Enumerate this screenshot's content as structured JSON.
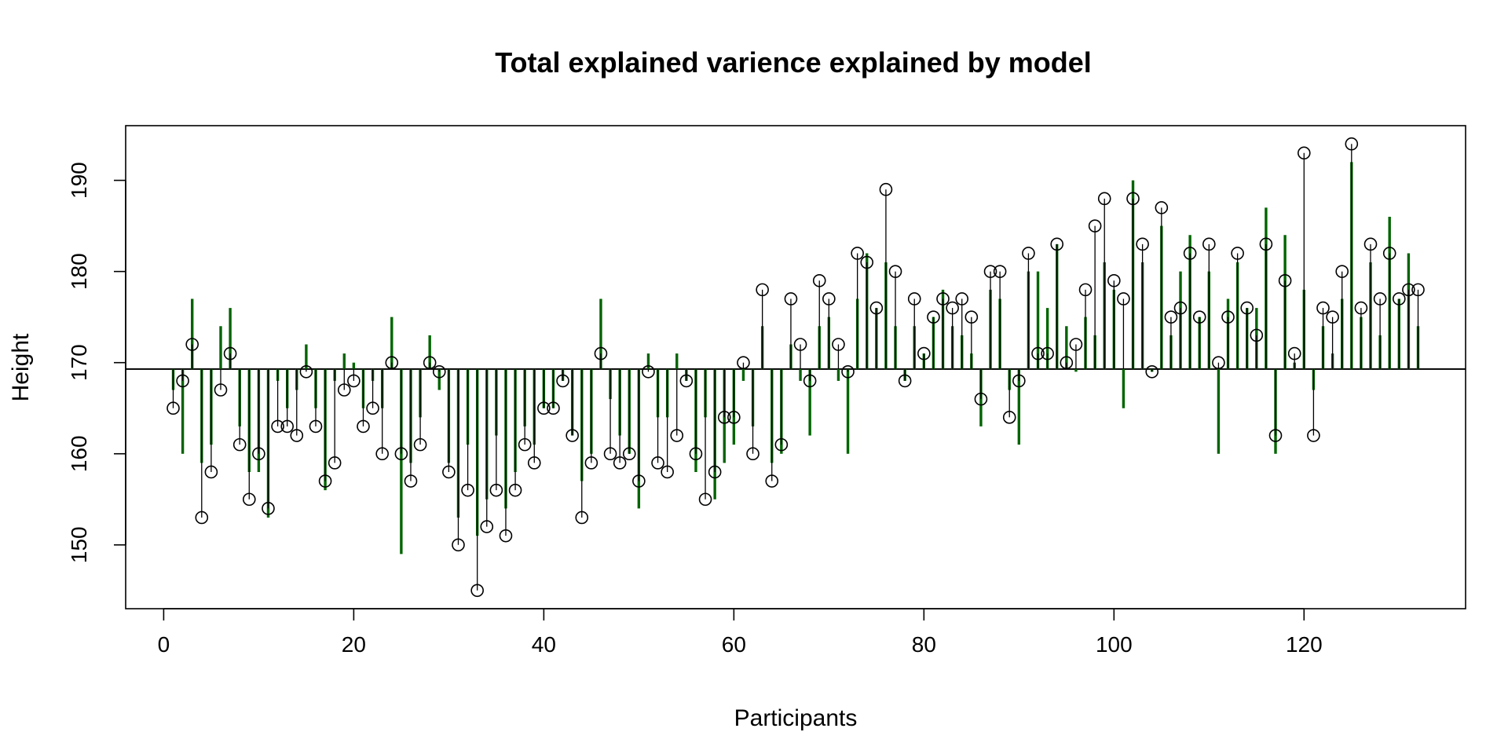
{
  "chart_data": {
    "type": "scatter",
    "title": "Total explained varience explained by model",
    "xlabel": "Participants",
    "ylabel": "Height",
    "xlim": [
      -4,
      137
    ],
    "ylim": [
      143,
      196
    ],
    "xticks": [
      0,
      20,
      40,
      60,
      80,
      100,
      120
    ],
    "yticks": [
      150,
      160,
      170,
      180,
      190
    ],
    "mean_line": 169.3,
    "grid": false,
    "legend": "none",
    "colors": {
      "fitted_segment": "#006400",
      "observed_segment": "#000000",
      "points": "#000000"
    },
    "x": [
      1,
      2,
      3,
      4,
      5,
      6,
      7,
      8,
      9,
      10,
      11,
      12,
      13,
      14,
      15,
      16,
      17,
      18,
      19,
      20,
      21,
      22,
      23,
      24,
      25,
      26,
      27,
      28,
      29,
      30,
      31,
      32,
      33,
      34,
      35,
      36,
      37,
      38,
      39,
      40,
      41,
      42,
      43,
      44,
      45,
      46,
      47,
      48,
      49,
      50,
      51,
      52,
      53,
      54,
      55,
      56,
      57,
      58,
      59,
      60,
      61,
      62,
      63,
      64,
      65,
      66,
      67,
      68,
      69,
      70,
      71,
      72,
      73,
      74,
      75,
      76,
      77,
      78,
      79,
      80,
      81,
      82,
      83,
      84,
      85,
      86,
      87,
      88,
      89,
      90,
      91,
      92,
      93,
      94,
      95,
      96,
      97,
      98,
      99,
      100,
      101,
      102,
      103,
      104,
      105,
      106,
      107,
      108,
      109,
      110,
      111,
      112,
      113,
      114,
      115,
      116,
      117,
      118,
      119,
      120,
      121,
      122,
      123,
      124,
      125,
      126,
      127,
      128,
      129,
      130,
      131,
      132
    ],
    "observed": [
      165,
      168,
      172,
      153,
      158,
      167,
      171,
      161,
      155,
      160,
      154,
      163,
      163,
      162,
      169,
      163,
      157,
      159,
      167,
      168,
      163,
      165,
      160,
      170,
      160,
      157,
      161,
      170,
      169,
      158,
      150,
      156,
      145,
      152,
      156,
      151,
      156,
      161,
      159,
      165,
      165,
      168,
      162,
      153,
      159,
      171,
      160,
      159,
      160,
      157,
      169,
      159,
      158,
      162,
      168,
      160,
      155,
      158,
      164,
      164,
      170,
      160,
      178,
      157,
      161,
      177,
      172,
      168,
      179,
      177,
      172,
      169,
      182,
      181,
      176,
      189,
      180,
      168,
      177,
      171,
      175,
      177,
      176,
      177,
      175,
      166,
      180,
      180,
      164,
      168,
      182,
      171,
      171,
      183,
      170,
      172,
      178,
      185,
      188,
      179,
      177,
      188,
      183,
      169,
      187,
      175,
      176,
      182,
      175,
      183,
      170,
      175,
      182,
      176,
      173,
      183,
      162,
      179,
      171,
      193,
      162,
      176,
      175,
      180,
      194,
      176,
      183,
      177,
      182,
      177,
      178,
      178
    ],
    "fitted": [
      167,
      160,
      177,
      159,
      161,
      174,
      176,
      163,
      158,
      158,
      153,
      168,
      165,
      167,
      172,
      165,
      156,
      168,
      171,
      170,
      165,
      168,
      165,
      175,
      149,
      159,
      164,
      173,
      167,
      159,
      153,
      161,
      151,
      155,
      162,
      154,
      158,
      163,
      161,
      165,
      165,
      168,
      162,
      157,
      160,
      177,
      166,
      162,
      160,
      154,
      171,
      164,
      164,
      171,
      168,
      158,
      164,
      155,
      159,
      161,
      168,
      163,
      174,
      159,
      160,
      172,
      168,
      162,
      174,
      175,
      168,
      160,
      177,
      182,
      176,
      181,
      174,
      168,
      174,
      171,
      175,
      178,
      174,
      173,
      171,
      163,
      178,
      177,
      167,
      161,
      180,
      180,
      176,
      183,
      174,
      169,
      175,
      173,
      181,
      178,
      165,
      190,
      181,
      169,
      185,
      173,
      180,
      184,
      175,
      180,
      160,
      177,
      181,
      176,
      176,
      187,
      160,
      184,
      170,
      178,
      167,
      174,
      171,
      177,
      192,
      175,
      181,
      173,
      186,
      177,
      182,
      174
    ]
  }
}
